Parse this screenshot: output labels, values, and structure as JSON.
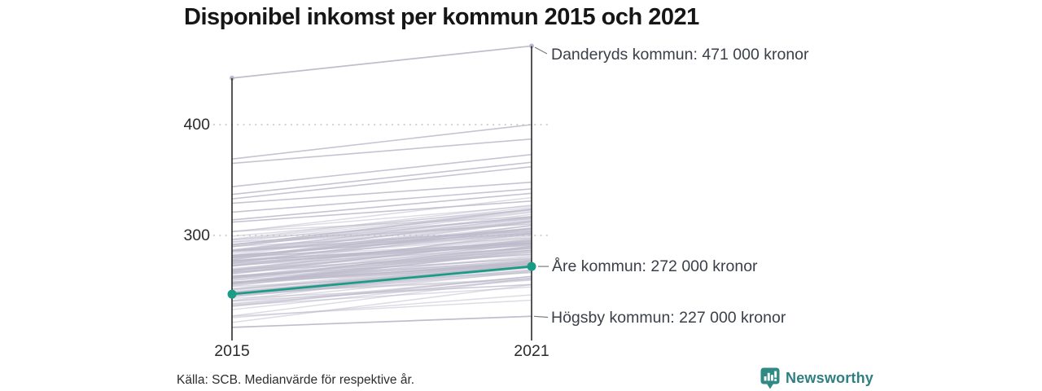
{
  "title": "Disponibel inkomst per kommun 2015 och 2021",
  "axis": {
    "x_left": "2015",
    "x_right": "2021",
    "ytick_top": "400",
    "ytick_bottom": "300"
  },
  "annotations": {
    "top": "Danderyds kommun: 471 000 kronor",
    "highlight": "Åre kommun: 272 000 kronor",
    "bottom": "Högsby kommun: 227 000 kronor"
  },
  "footer": {
    "source": "Källa: SCB. Medianvärde för respektive år."
  },
  "logo": {
    "name": "Newsworthy"
  },
  "colors": {
    "highlight": "#199b85",
    "line_gray": "#bdbacb",
    "axis": "#2b2b2b",
    "grid": "#d2d2d2",
    "connector": "#7a7a82",
    "text_dark": "#3a3f48",
    "logo_teal": "#2f8a84"
  },
  "chart_data": {
    "type": "line",
    "subtype": "slopegraph",
    "title": "Disponibel inkomst per kommun 2015 och 2021",
    "x": [
      "2015",
      "2021"
    ],
    "unit": "tusen kronor",
    "ylim": [
      210,
      480
    ],
    "yticks": [
      400,
      300
    ],
    "grid": "dotted horizontal lines at yticks",
    "legend": "none (direct labels on right side)",
    "series": [
      {
        "name": "Danderyds kommun",
        "values": [
          442,
          471
        ],
        "highlight": false,
        "label": "Danderyds kommun: 471 000 kronor",
        "endpoint_dots": true
      },
      {
        "name": "Åre kommun",
        "values": [
          247,
          272
        ],
        "highlight": true,
        "label": "Åre kommun: 272 000 kronor",
        "endpoint_dots": true
      },
      {
        "name": "Högsby kommun",
        "values": [
          217,
          227
        ],
        "highlight": false,
        "label": "Högsby kommun: 227 000 kronor",
        "endpoint_dots": false
      }
    ],
    "background_lines": {
      "note": "unlabeled gray lines = all other Swedish municipalities, values estimated from pixels",
      "upper_pairs": [
        [
          369,
          400
        ],
        [
          365,
          387
        ],
        [
          344,
          373
        ],
        [
          337,
          366
        ],
        [
          333,
          362
        ],
        [
          329,
          348
        ],
        [
          321,
          342
        ],
        [
          314,
          338
        ],
        [
          312,
          331
        ]
      ],
      "bulk": {
        "count": 140,
        "seed": 7,
        "v2015_range": [
          218,
          310
        ],
        "delta_range": [
          12,
          38
        ]
      }
    }
  }
}
